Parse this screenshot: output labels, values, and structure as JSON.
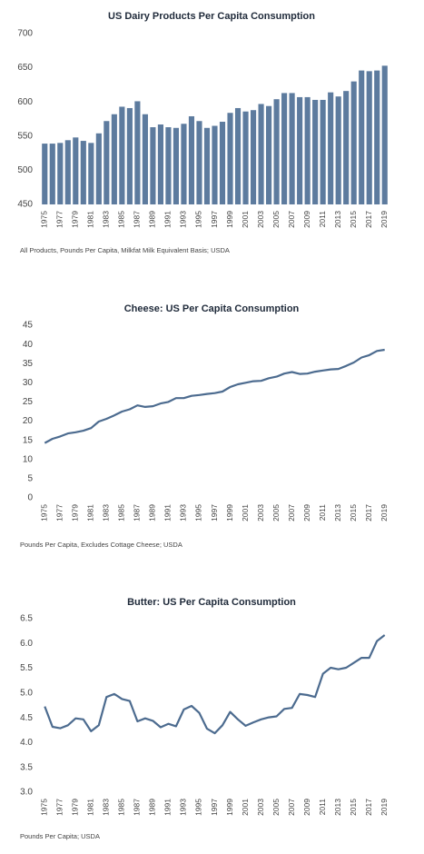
{
  "chart_data": [
    {
      "type": "bar",
      "title": "US Dairy Products Per Capita Consumption",
      "note": "All Products, Pounds Per Capita, Milkfat Milk Equivalent Basis; USDA",
      "categories": [
        "1975",
        null,
        "1977",
        null,
        "1979",
        null,
        "1981",
        null,
        "1983",
        null,
        "1985",
        null,
        "1987",
        null,
        "1989",
        null,
        "1991",
        null,
        "1993",
        null,
        "1995",
        null,
        "1997",
        null,
        "1999",
        null,
        "2001",
        null,
        "2003",
        null,
        "2005",
        null,
        "2007",
        null,
        "2009",
        null,
        "2011",
        null,
        "2013",
        null,
        "2015",
        null,
        "2017",
        null,
        "2019"
      ],
      "values": [
        539,
        539,
        540,
        544,
        548,
        543,
        540,
        554,
        572,
        582,
        593,
        591,
        601,
        582,
        563,
        567,
        563,
        562,
        568,
        579,
        572,
        562,
        565,
        571,
        584,
        591,
        586,
        588,
        597,
        594,
        604,
        613,
        613,
        607,
        607,
        603,
        603,
        614,
        608,
        616,
        630,
        646,
        645,
        646,
        653
      ],
      "color": "#5d7b9e",
      "ylim": [
        450,
        700
      ],
      "yticks": [
        450,
        500,
        550,
        600,
        650,
        700
      ]
    },
    {
      "type": "line",
      "title": "Cheese: US Per Capita Consumption",
      "note": "Pounds Per Capita, Excludes Cottage Cheese; USDA",
      "categories": [
        "1975",
        null,
        "1977",
        null,
        "1979",
        null,
        "1981",
        null,
        "1983",
        null,
        "1985",
        null,
        "1987",
        null,
        "1989",
        null,
        "1991",
        null,
        "1993",
        null,
        "1995",
        null,
        "1997",
        null,
        "1999",
        null,
        "2001",
        null,
        "2003",
        null,
        "2005",
        null,
        "2007",
        null,
        "2009",
        null,
        "2011",
        null,
        "2013",
        null,
        "2015",
        null,
        "2017",
        null,
        "2019"
      ],
      "values": [
        14.3,
        15.4,
        16.0,
        16.8,
        17.1,
        17.5,
        18.2,
        19.9,
        20.6,
        21.5,
        22.5,
        23.1,
        24.1,
        23.7,
        23.9,
        24.6,
        25.0,
        26.0,
        26.0,
        26.6,
        26.8,
        27.1,
        27.3,
        27.7,
        28.9,
        29.6,
        30.0,
        30.4,
        30.5,
        31.2,
        31.6,
        32.4,
        32.8,
        32.3,
        32.4,
        32.9,
        33.2,
        33.5,
        33.6,
        34.4,
        35.3,
        36.6,
        37.2,
        38.3,
        38.6
      ],
      "color": "#4c6b8f",
      "ylim": [
        0,
        45
      ],
      "yticks": [
        0,
        5,
        10,
        15,
        20,
        25,
        30,
        35,
        40,
        45
      ]
    },
    {
      "type": "line",
      "title": "Butter: US Per Capita Consumption",
      "note": "Pounds Per Capita; USDA",
      "categories": [
        "1975",
        null,
        "1977",
        null,
        "1979",
        null,
        "1981",
        null,
        "1983",
        null,
        "1985",
        null,
        "1987",
        null,
        "1989",
        null,
        "1991",
        null,
        "1993",
        null,
        "1995",
        null,
        "1997",
        null,
        "1999",
        null,
        "2001",
        null,
        "2003",
        null,
        "2005",
        null,
        "2007",
        null,
        "2009",
        null,
        "2011",
        null,
        "2013",
        null,
        "2015",
        null,
        "2017",
        null,
        "2019"
      ],
      "values": [
        4.73,
        4.32,
        4.29,
        4.35,
        4.49,
        4.47,
        4.23,
        4.35,
        4.92,
        4.98,
        4.88,
        4.84,
        4.43,
        4.49,
        4.44,
        4.31,
        4.38,
        4.33,
        4.67,
        4.74,
        4.6,
        4.28,
        4.19,
        4.35,
        4.62,
        4.47,
        4.34,
        4.41,
        4.47,
        4.51,
        4.53,
        4.68,
        4.7,
        4.98,
        4.96,
        4.92,
        5.39,
        5.51,
        5.48,
        5.51,
        5.61,
        5.71,
        5.71,
        6.05,
        6.17
      ],
      "color": "#4c6b8f",
      "ylim": [
        3.0,
        6.5
      ],
      "yticks": [
        {
          "value": 3.0,
          "label": "3.0"
        },
        3.5,
        {
          "value": 4.0,
          "label": "4.0"
        },
        4.5,
        {
          "value": 5.0,
          "label": "5.0"
        },
        5.5,
        {
          "value": 6.0,
          "label": "6.0"
        },
        6.5
      ]
    }
  ]
}
